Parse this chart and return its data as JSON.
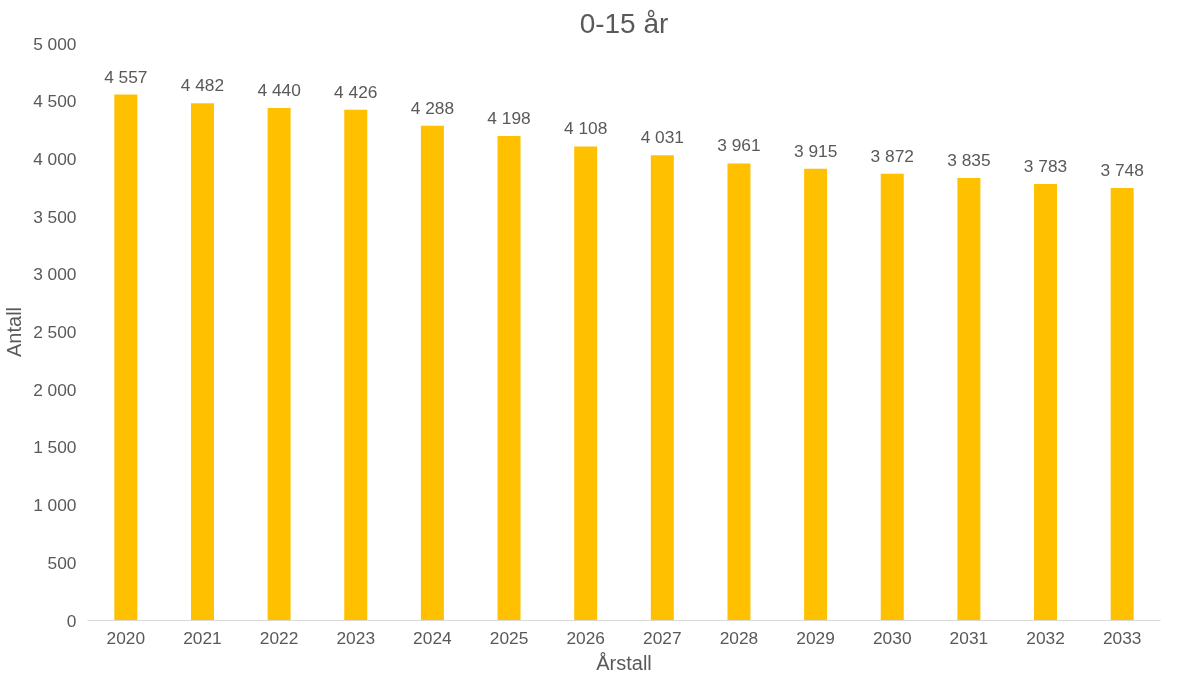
{
  "chart_data": {
    "type": "bar",
    "title": "0-15 år",
    "xlabel": "Årstall",
    "ylabel": "Antall",
    "categories": [
      "2020",
      "2021",
      "2022",
      "2023",
      "2024",
      "2025",
      "2026",
      "2027",
      "2028",
      "2029",
      "2030",
      "2031",
      "2032",
      "2033"
    ],
    "values": [
      4557,
      4482,
      4440,
      4426,
      4288,
      4198,
      4108,
      4031,
      3961,
      3915,
      3872,
      3835,
      3783,
      3748
    ],
    "value_labels": [
      "4 557",
      "4 482",
      "4 440",
      "4 426",
      "4 288",
      "4 198",
      "4 108",
      "4 031",
      "3 961",
      "3 915",
      "3 872",
      "3 835",
      "3 783",
      "3 748"
    ],
    "color": "#ffc000",
    "ylim": [
      0,
      5000
    ],
    "yticks": [
      0,
      500,
      {
        "value": 1000,
        "label": "1 000"
      },
      {
        "value": 1500,
        "label": "1 500"
      },
      {
        "value": 2000,
        "label": "2 000"
      },
      {
        "value": 2500,
        "label": "2 500"
      },
      {
        "value": 3000,
        "label": "3 000"
      },
      {
        "value": 3500,
        "label": "3 500"
      },
      {
        "value": 4000,
        "label": "4 000"
      },
      {
        "value": 4500,
        "label": "4 500"
      },
      {
        "value": 5000,
        "label": "5 000"
      }
    ],
    "grid": false
  }
}
